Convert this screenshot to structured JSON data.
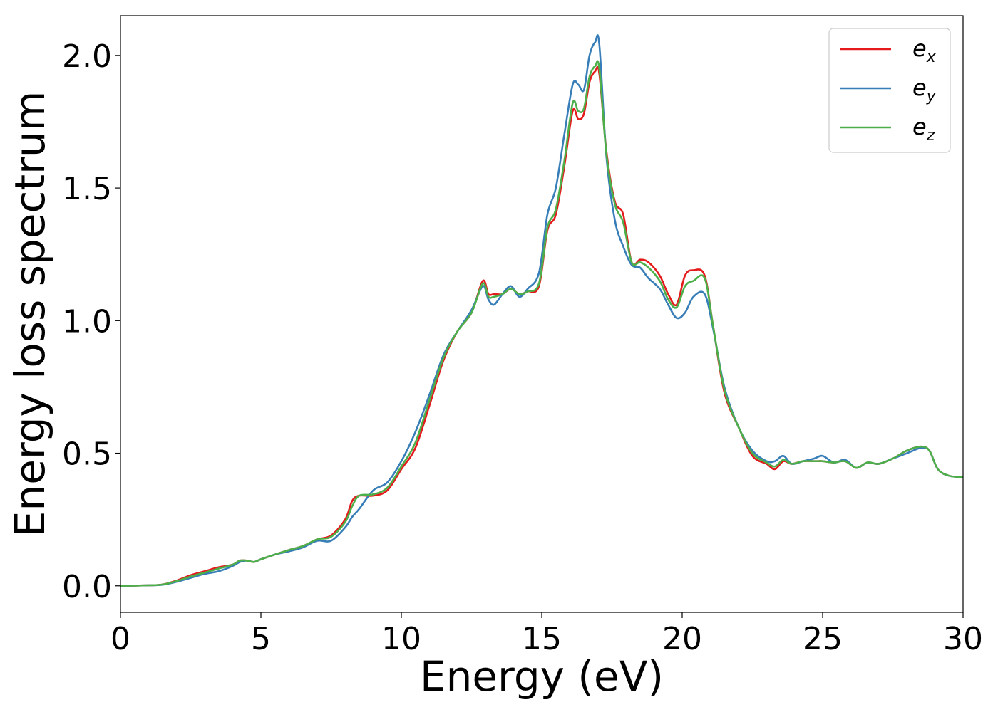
{
  "chart_data": {
    "type": "line",
    "title": "",
    "xlabel": "Energy (eV)",
    "ylabel": "Energy loss spectrum",
    "xlim": [
      0,
      30
    ],
    "ylim": [
      -0.1,
      2.15
    ],
    "xticks": [
      0,
      5,
      10,
      15,
      20,
      25,
      30
    ],
    "xtick_labels": [
      "0",
      "5",
      "10",
      "15",
      "20",
      "25",
      "30"
    ],
    "yticks": [
      0.0,
      0.5,
      1.0,
      1.5,
      2.0
    ],
    "ytick_labels": [
      "0.0",
      "0.5",
      "1.0",
      "1.5",
      "2.0"
    ],
    "grid": false,
    "legend_position": "top-right",
    "legend": [
      {
        "base": "e",
        "sub": "x",
        "color": "#e41a1c"
      },
      {
        "base": "e",
        "sub": "y",
        "color": "#377eb8"
      },
      {
        "base": "e",
        "sub": "z",
        "color": "#4daf4a"
      }
    ],
    "x": [
      0,
      1,
      1.5,
      2,
      2.5,
      3,
      3.5,
      4,
      4.25,
      4.5,
      4.75,
      5,
      5.5,
      6,
      6.5,
      7,
      7.5,
      8,
      8.25,
      8.5,
      9,
      9.5,
      10,
      10.5,
      11,
      11.5,
      12,
      12.5,
      12.9,
      13.1,
      13.3,
      13.6,
      13.9,
      14.2,
      14.5,
      14.9,
      15.2,
      15.5,
      15.8,
      16.1,
      16.3,
      16.5,
      16.7,
      16.9,
      17.05,
      17.3,
      17.6,
      17.9,
      18.2,
      18.5,
      18.8,
      19.2,
      19.5,
      19.8,
      20.1,
      20.4,
      20.8,
      21.1,
      21.5,
      22,
      22.5,
      23,
      23.3,
      23.6,
      23.9,
      24.3,
      24.7,
      25,
      25.4,
      25.8,
      26.2,
      26.6,
      27,
      27.5,
      28,
      28.5,
      28.8,
      29.1,
      29.5,
      30
    ],
    "series": [
      {
        "name": "e_x",
        "color": "#e41a1c",
        "values": [
          0.0,
          0.002,
          0.005,
          0.02,
          0.04,
          0.055,
          0.07,
          0.08,
          0.095,
          0.095,
          0.09,
          0.1,
          0.118,
          0.135,
          0.15,
          0.175,
          0.19,
          0.25,
          0.32,
          0.34,
          0.34,
          0.36,
          0.44,
          0.52,
          0.68,
          0.85,
          0.96,
          1.03,
          1.15,
          1.1,
          1.1,
          1.1,
          1.12,
          1.1,
          1.11,
          1.13,
          1.34,
          1.4,
          1.58,
          1.79,
          1.76,
          1.78,
          1.9,
          1.94,
          1.93,
          1.64,
          1.45,
          1.4,
          1.22,
          1.23,
          1.22,
          1.17,
          1.1,
          1.06,
          1.17,
          1.19,
          1.17,
          0.98,
          0.73,
          0.6,
          0.49,
          0.46,
          0.44,
          0.47,
          0.46,
          0.47,
          0.47,
          0.47,
          0.465,
          0.47,
          0.445,
          0.465,
          0.46,
          0.48,
          0.51,
          0.525,
          0.51,
          0.44,
          0.415,
          0.41
        ]
      },
      {
        "name": "e_y",
        "color": "#377eb8",
        "values": [
          0.0,
          0.002,
          0.004,
          0.015,
          0.03,
          0.045,
          0.055,
          0.075,
          0.09,
          0.095,
          0.09,
          0.1,
          0.118,
          0.13,
          0.145,
          0.17,
          0.17,
          0.22,
          0.26,
          0.29,
          0.36,
          0.39,
          0.47,
          0.58,
          0.72,
          0.87,
          0.96,
          1.04,
          1.13,
          1.08,
          1.06,
          1.1,
          1.13,
          1.09,
          1.12,
          1.18,
          1.4,
          1.5,
          1.7,
          1.89,
          1.89,
          1.87,
          2.0,
          2.05,
          2.04,
          1.62,
          1.38,
          1.28,
          1.21,
          1.2,
          1.16,
          1.12,
          1.06,
          1.01,
          1.03,
          1.09,
          1.1,
          0.97,
          0.75,
          0.6,
          0.51,
          0.47,
          0.47,
          0.49,
          0.46,
          0.47,
          0.48,
          0.49,
          0.465,
          0.475,
          0.445,
          0.465,
          0.46,
          0.48,
          0.5,
          0.52,
          0.51,
          0.44,
          0.415,
          0.41
        ]
      },
      {
        "name": "e_z",
        "color": "#4daf4a",
        "values": [
          0.0,
          0.002,
          0.005,
          0.018,
          0.035,
          0.05,
          0.065,
          0.08,
          0.095,
          0.095,
          0.09,
          0.1,
          0.118,
          0.135,
          0.15,
          0.175,
          0.185,
          0.24,
          0.3,
          0.34,
          0.345,
          0.37,
          0.45,
          0.54,
          0.7,
          0.86,
          0.96,
          1.03,
          1.14,
          1.09,
          1.09,
          1.1,
          1.12,
          1.1,
          1.11,
          1.14,
          1.35,
          1.42,
          1.6,
          1.82,
          1.79,
          1.8,
          1.92,
          1.96,
          1.95,
          1.63,
          1.44,
          1.37,
          1.22,
          1.22,
          1.2,
          1.15,
          1.08,
          1.05,
          1.13,
          1.15,
          1.16,
          0.98,
          0.74,
          0.6,
          0.5,
          0.465,
          0.45,
          0.475,
          0.46,
          0.47,
          0.47,
          0.47,
          0.465,
          0.47,
          0.445,
          0.465,
          0.46,
          0.48,
          0.51,
          0.525,
          0.51,
          0.44,
          0.415,
          0.41
        ]
      }
    ]
  }
}
